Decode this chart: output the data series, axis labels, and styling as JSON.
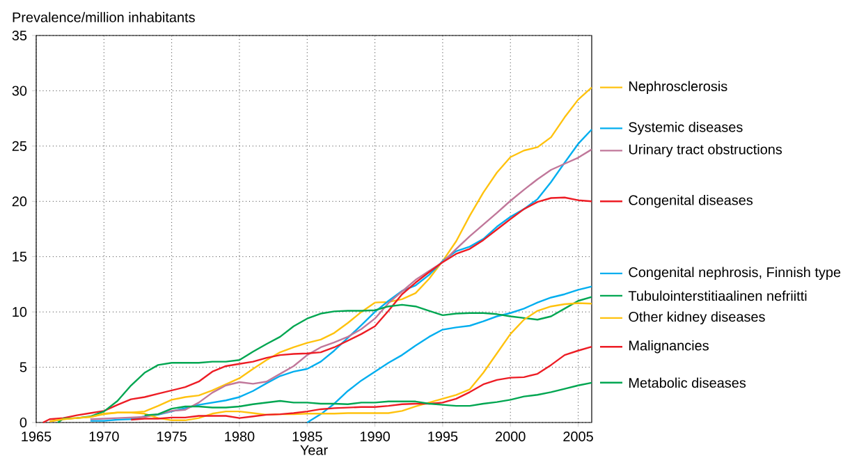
{
  "chart_data": {
    "type": "line",
    "xlabel": "Year",
    "ylabel": "Prevalence/million inhabitants",
    "xlim": [
      1965,
      2006
    ],
    "xticks": [
      1965,
      1970,
      1975,
      1980,
      1985,
      1990,
      1995,
      2000,
      2005
    ],
    "ylim": [
      0,
      35
    ],
    "yticks": [
      0,
      5,
      10,
      15,
      20,
      25,
      30,
      35
    ],
    "grid": true,
    "legend": "right",
    "marker": "none",
    "line_style": "solid",
    "series": [
      {
        "name": "Nephrosclerosis",
        "color": "#ffc20e",
        "x": [
          1966,
          1967,
          1968,
          1969,
          1970,
          1971,
          1972,
          1973,
          1974,
          1975,
          1976,
          1977,
          1978,
          1979,
          1980,
          1981,
          1982,
          1983,
          1984,
          1985,
          1986,
          1987,
          1988,
          1989,
          1990,
          1991,
          1992,
          1993,
          1994,
          1995,
          1996,
          1997,
          1998,
          1999,
          2000,
          2001,
          2002,
          2003,
          2004,
          2005,
          2006
        ],
        "values": [
          0.1,
          0.3,
          0.4,
          0.5,
          0.75,
          0.9,
          0.9,
          1.0,
          1.5,
          2.05,
          2.3,
          2.45,
          2.9,
          3.45,
          4.0,
          4.85,
          5.65,
          6.35,
          6.8,
          7.2,
          7.5,
          8.1,
          9.0,
          10.0,
          10.85,
          10.9,
          11.15,
          11.7,
          13.0,
          14.6,
          16.4,
          18.7,
          20.8,
          22.6,
          24.0,
          24.6,
          24.9,
          25.8,
          27.6,
          29.2,
          30.3
        ]
      },
      {
        "name": "Systemic diseases",
        "color": "#00aeef",
        "x": [
          1969,
          1970,
          1971,
          1972,
          1973,
          1974,
          1975,
          1976,
          1977,
          1978,
          1979,
          1980,
          1981,
          1982,
          1983,
          1984,
          1985,
          1986,
          1987,
          1988,
          1989,
          1990,
          1991,
          1992,
          1993,
          1994,
          1995,
          1996,
          1997,
          1998,
          1999,
          2000,
          2001,
          2002,
          2003,
          2004,
          2005,
          2006
        ],
        "values": [
          0.15,
          0.15,
          0.25,
          0.3,
          0.55,
          0.7,
          1.0,
          1.3,
          1.6,
          1.8,
          2.0,
          2.3,
          2.85,
          3.55,
          4.2,
          4.6,
          4.85,
          5.5,
          6.5,
          7.65,
          8.8,
          10.0,
          11.0,
          11.9,
          12.4,
          13.35,
          14.6,
          15.5,
          15.9,
          16.6,
          17.7,
          18.6,
          19.3,
          20.2,
          21.75,
          23.5,
          25.2,
          26.5
        ]
      },
      {
        "name": "Urinary tract obstructions",
        "color": "#c0779a",
        "x": [
          1969,
          1970,
          1971,
          1972,
          1973,
          1974,
          1975,
          1976,
          1977,
          1978,
          1979,
          1980,
          1981,
          1982,
          1983,
          1984,
          1985,
          1986,
          1987,
          1988,
          1989,
          1990,
          1991,
          1992,
          1993,
          1994,
          1995,
          1996,
          1997,
          1998,
          1999,
          2000,
          2001,
          2002,
          2003,
          2004,
          2005,
          2006
        ],
        "values": [
          0.3,
          0.35,
          0.4,
          0.45,
          0.5,
          0.75,
          1.05,
          1.15,
          1.8,
          2.7,
          3.35,
          3.65,
          3.5,
          3.7,
          4.4,
          5.1,
          6.1,
          6.8,
          7.25,
          7.75,
          8.45,
          9.4,
          10.8,
          11.85,
          12.9,
          13.7,
          14.5,
          15.7,
          16.85,
          17.9,
          18.95,
          20.05,
          21.05,
          22.0,
          22.85,
          23.4,
          23.95,
          24.7
        ]
      },
      {
        "name": "Congenital diseases",
        "color": "#ed1c24",
        "x": [
          1965.5,
          1966,
          1967,
          1968,
          1969,
          1970,
          1971,
          1972,
          1973,
          1974,
          1975,
          1976,
          1977,
          1978,
          1979,
          1980,
          1981,
          1982,
          1983,
          1984,
          1985,
          1986,
          1987,
          1988,
          1989,
          1990,
          1991,
          1992,
          1993,
          1994,
          1995,
          1996,
          1997,
          1998,
          1999,
          2000,
          2001,
          2002,
          2003,
          2004,
          2005,
          2006
        ],
        "values": [
          0,
          0.3,
          0.4,
          0.65,
          0.85,
          1.05,
          1.6,
          2.1,
          2.3,
          2.6,
          2.9,
          3.2,
          3.7,
          4.6,
          5.1,
          5.3,
          5.5,
          5.85,
          6.1,
          6.2,
          6.25,
          6.35,
          6.8,
          7.4,
          8.0,
          8.7,
          10.1,
          11.6,
          12.65,
          13.6,
          14.5,
          15.25,
          15.7,
          16.5,
          17.45,
          18.4,
          19.3,
          19.95,
          20.3,
          20.35,
          20.1,
          20.0
        ]
      },
      {
        "name": "Congenital nephrosis, Finnish type",
        "color": "#00aeef",
        "x": [
          1985,
          1986,
          1987,
          1988,
          1989,
          1990,
          1991,
          1992,
          1993,
          1994,
          1995,
          1996,
          1997,
          1998,
          1999,
          2000,
          2001,
          2002,
          2003,
          2004,
          2005,
          2006
        ],
        "values": [
          0,
          0.75,
          1.7,
          2.85,
          3.8,
          4.6,
          5.4,
          6.1,
          6.95,
          7.75,
          8.4,
          8.6,
          8.75,
          9.15,
          9.6,
          9.9,
          10.3,
          10.85,
          11.3,
          11.6,
          12.0,
          12.3
        ]
      },
      {
        "name": "Tubulointerstitiaalinen nefriitti",
        "color": "#00a651",
        "x": [
          1966.6,
          1967,
          1968,
          1969,
          1970,
          1971,
          1972,
          1973,
          1974,
          1975,
          1976,
          1977,
          1978,
          1979,
          1980,
          1981,
          1982,
          1983,
          1984,
          1985,
          1986,
          1987,
          1988,
          1989,
          1990,
          1991,
          1992,
          1993,
          1994,
          1995,
          1996,
          1997,
          1998,
          1999,
          2000,
          2001,
          2002,
          2003,
          2004,
          2005,
          2006
        ],
        "values": [
          0,
          0.35,
          0.4,
          0.55,
          1.0,
          1.95,
          3.35,
          4.5,
          5.2,
          5.4,
          5.4,
          5.4,
          5.5,
          5.5,
          5.65,
          6.4,
          7.1,
          7.75,
          8.7,
          9.4,
          9.85,
          10.05,
          10.1,
          10.1,
          10.15,
          10.5,
          10.65,
          10.5,
          10.1,
          9.7,
          9.85,
          9.9,
          9.9,
          9.8,
          9.6,
          9.45,
          9.3,
          9.6,
          10.3,
          11.0,
          11.35
        ]
      },
      {
        "name": "Other kidney diseases",
        "color": "#ffc20e",
        "x": [
          1966,
          1967,
          1968,
          1969,
          1970,
          1971,
          1972,
          1973,
          1974,
          1975,
          1976,
          1977,
          1978,
          1979,
          1980,
          1981,
          1982,
          1983,
          1984,
          1985,
          1986,
          1987,
          1988,
          1989,
          1990,
          1991,
          1992,
          1993,
          1994,
          1995,
          1996,
          1997,
          1998,
          1999,
          2000,
          2001,
          2002,
          2003,
          2004,
          2005,
          2006
        ],
        "values": [
          0.1,
          0.3,
          0.4,
          0.5,
          0.8,
          0.9,
          0.9,
          0.8,
          0.4,
          0.2,
          0.2,
          0.4,
          0.8,
          1.0,
          1.0,
          0.85,
          0.7,
          0.75,
          0.75,
          0.8,
          0.8,
          0.8,
          0.85,
          0.85,
          0.85,
          0.85,
          1.05,
          1.45,
          1.8,
          2.15,
          2.5,
          3.0,
          4.5,
          6.25,
          8.0,
          9.3,
          10.1,
          10.5,
          10.7,
          10.8,
          10.75
        ]
      },
      {
        "name": "Malignancies",
        "color": "#ed1c24",
        "x": [
          1972,
          1973,
          1974,
          1975,
          1976,
          1977,
          1978,
          1979,
          1980,
          1981,
          1982,
          1983,
          1984,
          1985,
          1986,
          1987,
          1988,
          1989,
          1990,
          1991,
          1992,
          1993,
          1994,
          1995,
          1996,
          1997,
          1998,
          1999,
          2000,
          2001,
          2002,
          2003,
          2004,
          2005,
          2006
        ],
        "values": [
          0.25,
          0.35,
          0.35,
          0.45,
          0.45,
          0.6,
          0.6,
          0.6,
          0.4,
          0.55,
          0.7,
          0.75,
          0.85,
          1.0,
          1.2,
          1.3,
          1.35,
          1.4,
          1.4,
          1.5,
          1.65,
          1.7,
          1.7,
          1.8,
          2.15,
          2.75,
          3.45,
          3.85,
          4.05,
          4.1,
          4.4,
          5.2,
          6.1,
          6.5,
          6.85
        ]
      },
      {
        "name": "Metabolic diseases",
        "color": "#00a651",
        "x": [
          1973,
          1974,
          1975,
          1976,
          1977,
          1978,
          1979,
          1980,
          1981,
          1982,
          1983,
          1984,
          1985,
          1986,
          1987,
          1988,
          1989,
          1990,
          1991,
          1992,
          1993,
          1994,
          1995,
          1996,
          1997,
          1998,
          1999,
          2000,
          2001,
          2002,
          2003,
          2004,
          2005,
          2006
        ],
        "values": [
          0.65,
          0.75,
          1.25,
          1.45,
          1.45,
          1.35,
          1.35,
          1.45,
          1.65,
          1.8,
          1.95,
          1.8,
          1.8,
          1.7,
          1.7,
          1.65,
          1.8,
          1.8,
          1.9,
          1.9,
          1.9,
          1.7,
          1.6,
          1.5,
          1.5,
          1.7,
          1.85,
          2.05,
          2.35,
          2.5,
          2.75,
          3.05,
          3.35,
          3.6
        ]
      }
    ]
  }
}
